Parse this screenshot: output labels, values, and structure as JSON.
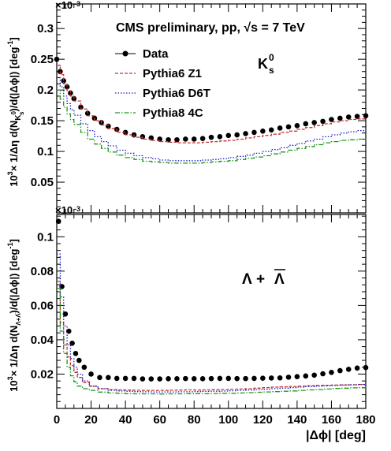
{
  "chart_data": [
    {
      "type": "line",
      "panel": "top",
      "title": "CMS preliminary, pp, √s = 7 TeV",
      "particle_label": "K_s^0",
      "particle_label_main": "K",
      "particle_label_sup": "0",
      "particle_label_sub": "s",
      "xlabel": "|Δϕ| [deg]",
      "ylabel": "10³× 1/Δη d(N_Ks0)/d(|Δϕ|) [deg⁻¹]",
      "ylabel_parts": [
        "10",
        "3",
        "× 1/Δη d(N",
        "K",
        "0",
        "s",
        ")/d(|Δϕ|) [deg",
        "-1",
        "]"
      ],
      "exponent_label": "×10",
      "exponent_power": "-3",
      "xlim": [
        0,
        180
      ],
      "ylim": [
        0,
        0.34
      ],
      "yticks": [
        0.05,
        0.1,
        0.15,
        0.2,
        0.25,
        0.3
      ],
      "ytick_labels": [
        "0.05",
        "0.1",
        "0.15",
        "0.2",
        "0.25",
        "0.3"
      ],
      "legend": {
        "placement": "top-left",
        "entries": [
          "Data",
          "Pythia6 Z1",
          "Pythia6 D6T",
          "Pythia8 4C"
        ]
      },
      "series": [
        {
          "name": "Data",
          "style": "markers",
          "color": "#000000",
          "x": [
            0,
            2,
            4,
            6,
            8,
            10,
            14,
            18,
            22,
            26,
            30,
            35,
            40,
            45,
            50,
            55,
            60,
            65,
            70,
            75,
            80,
            85,
            90,
            95,
            100,
            105,
            110,
            115,
            120,
            125,
            130,
            135,
            140,
            145,
            150,
            155,
            160,
            165,
            170,
            175,
            180
          ],
          "y": [
            0.25,
            0.23,
            0.215,
            0.205,
            0.195,
            0.186,
            0.172,
            0.162,
            0.154,
            0.147,
            0.141,
            0.136,
            0.131,
            0.127,
            0.124,
            0.122,
            0.12,
            0.119,
            0.119,
            0.12,
            0.12,
            0.121,
            0.123,
            0.124,
            0.126,
            0.127,
            0.129,
            0.131,
            0.133,
            0.135,
            0.138,
            0.14,
            0.142,
            0.145,
            0.147,
            0.149,
            0.152,
            0.154,
            0.156,
            0.157,
            0.158
          ]
        },
        {
          "name": "Pythia6 Z1",
          "style": "step",
          "color": "#c83232",
          "x": [
            0,
            2,
            4,
            6,
            8,
            10,
            14,
            18,
            22,
            26,
            30,
            35,
            40,
            45,
            50,
            55,
            60,
            65,
            70,
            75,
            80,
            85,
            90,
            95,
            100,
            105,
            110,
            115,
            120,
            125,
            130,
            135,
            140,
            145,
            150,
            155,
            160,
            165,
            170,
            175,
            180
          ],
          "y": [
            0.24,
            0.225,
            0.21,
            0.199,
            0.19,
            0.182,
            0.169,
            0.158,
            0.15,
            0.143,
            0.137,
            0.131,
            0.127,
            0.123,
            0.12,
            0.118,
            0.116,
            0.115,
            0.114,
            0.114,
            0.114,
            0.115,
            0.116,
            0.117,
            0.118,
            0.12,
            0.122,
            0.124,
            0.126,
            0.128,
            0.131,
            0.133,
            0.136,
            0.139,
            0.142,
            0.145,
            0.148,
            0.15,
            0.152,
            0.153,
            0.154
          ]
        },
        {
          "name": "Pythia6 D6T",
          "style": "step",
          "color": "#1e1ec8",
          "x": [
            0,
            2,
            4,
            6,
            8,
            10,
            14,
            18,
            22,
            26,
            30,
            35,
            40,
            45,
            50,
            55,
            60,
            65,
            70,
            75,
            80,
            85,
            90,
            95,
            100,
            105,
            110,
            115,
            120,
            125,
            130,
            135,
            140,
            145,
            150,
            155,
            160,
            165,
            170,
            175,
            180
          ],
          "y": [
            0.22,
            0.205,
            0.19,
            0.178,
            0.168,
            0.159,
            0.145,
            0.134,
            0.124,
            0.116,
            0.109,
            0.102,
            0.097,
            0.093,
            0.09,
            0.088,
            0.086,
            0.085,
            0.085,
            0.085,
            0.085,
            0.086,
            0.087,
            0.088,
            0.09,
            0.092,
            0.094,
            0.097,
            0.1,
            0.103,
            0.106,
            0.11,
            0.113,
            0.117,
            0.12,
            0.124,
            0.127,
            0.13,
            0.132,
            0.134,
            0.135
          ]
        },
        {
          "name": "Pythia8 4C",
          "style": "step",
          "color": "#1e961e",
          "x": [
            0,
            2,
            4,
            6,
            8,
            10,
            14,
            18,
            22,
            26,
            30,
            35,
            40,
            45,
            50,
            55,
            60,
            65,
            70,
            75,
            80,
            85,
            90,
            95,
            100,
            105,
            110,
            115,
            120,
            125,
            130,
            135,
            140,
            145,
            150,
            155,
            160,
            165,
            170,
            175,
            180
          ],
          "y": [
            0.2,
            0.185,
            0.172,
            0.161,
            0.152,
            0.144,
            0.131,
            0.12,
            0.112,
            0.105,
            0.099,
            0.094,
            0.09,
            0.087,
            0.084,
            0.083,
            0.082,
            0.081,
            0.081,
            0.081,
            0.081,
            0.082,
            0.083,
            0.084,
            0.085,
            0.087,
            0.089,
            0.091,
            0.093,
            0.096,
            0.099,
            0.102,
            0.105,
            0.108,
            0.111,
            0.114,
            0.116,
            0.118,
            0.119,
            0.12,
            0.121
          ]
        }
      ]
    },
    {
      "type": "line",
      "panel": "bottom",
      "particle_label": "Λ + Λ̅",
      "particle_label_left": "Λ + ",
      "particle_label_right": "Λ",
      "xlabel": "|Δϕ| [deg]",
      "ylabel": "10³× 1/Δη d(N_Λ+Λ̅)/d(|Δϕ|) [deg⁻¹]",
      "ylabel_parts": [
        "10",
        "3",
        "× 1/Δη d(N",
        "Λ+Λ̅",
        ")/d(|Δϕ|) [deg",
        "-1",
        "]"
      ],
      "exponent_label": "×10",
      "exponent_power": "-3",
      "xlim": [
        0,
        180
      ],
      "ylim": [
        0,
        0.113
      ],
      "yticks": [
        0.02,
        0.04,
        0.06,
        0.08,
        0.1
      ],
      "ytick_labels": [
        "0.02",
        "0.04",
        "0.06",
        "0.08",
        "0.1"
      ],
      "xticks": [
        0,
        20,
        40,
        60,
        80,
        100,
        120,
        140,
        160,
        180
      ],
      "xtick_labels": [
        "0",
        "20",
        "40",
        "60",
        "80",
        "100",
        "120",
        "140",
        "160",
        "180"
      ],
      "series": [
        {
          "name": "Data",
          "style": "markers",
          "color": "#000000",
          "x": [
            1,
            3,
            5,
            7,
            9,
            11,
            13,
            16,
            20,
            25,
            30,
            35,
            40,
            45,
            50,
            55,
            60,
            65,
            70,
            75,
            80,
            85,
            90,
            95,
            100,
            105,
            110,
            115,
            120,
            125,
            130,
            135,
            140,
            145,
            150,
            155,
            160,
            165,
            170,
            175,
            180
          ],
          "y": [
            0.109,
            0.071,
            0.055,
            0.045,
            0.038,
            0.032,
            0.028,
            0.024,
            0.02,
            0.018,
            0.018,
            0.0175,
            0.0175,
            0.0175,
            0.0172,
            0.0172,
            0.0172,
            0.0173,
            0.0173,
            0.0174,
            0.0173,
            0.0173,
            0.0174,
            0.0175,
            0.0175,
            0.0174,
            0.0174,
            0.0175,
            0.0176,
            0.0177,
            0.0178,
            0.0182,
            0.0185,
            0.0189,
            0.0194,
            0.0202,
            0.021,
            0.022,
            0.0228,
            0.0235,
            0.0238
          ]
        },
        {
          "name": "Pythia6 Z1",
          "style": "step",
          "color": "#c83232",
          "x": [
            0,
            2,
            4,
            6,
            8,
            10,
            12,
            15,
            19,
            24,
            30,
            35,
            40,
            45,
            50,
            55,
            60,
            65,
            70,
            75,
            80,
            85,
            90,
            95,
            100,
            105,
            110,
            115,
            120,
            125,
            130,
            135,
            140,
            145,
            150,
            155,
            160,
            165,
            170,
            175,
            180
          ],
          "y": [
            0.074,
            0.05,
            0.037,
            0.03,
            0.025,
            0.021,
            0.018,
            0.015,
            0.013,
            0.0115,
            0.011,
            0.0108,
            0.0107,
            0.0106,
            0.0105,
            0.0105,
            0.0105,
            0.0106,
            0.0107,
            0.0108,
            0.0107,
            0.0108,
            0.0109,
            0.011,
            0.0112,
            0.0113,
            0.0115,
            0.0118,
            0.0121,
            0.0124,
            0.0126,
            0.0128,
            0.013,
            0.0132,
            0.0134,
            0.0135,
            0.0136,
            0.0137,
            0.0138,
            0.0139,
            0.014
          ]
        },
        {
          "name": "Pythia6 D6T",
          "style": "step",
          "color": "#1e1ec8",
          "x": [
            0,
            2,
            4,
            6,
            8,
            10,
            12,
            15,
            19,
            24,
            30,
            35,
            40,
            45,
            50,
            55,
            60,
            65,
            70,
            75,
            80,
            85,
            90,
            95,
            100,
            105,
            110,
            115,
            120,
            125,
            130,
            135,
            140,
            145,
            150,
            155,
            160,
            165,
            170,
            175,
            180
          ],
          "y": [
            0.09,
            0.065,
            0.048,
            0.037,
            0.029,
            0.024,
            0.02,
            0.016,
            0.013,
            0.0115,
            0.0105,
            0.0102,
            0.01,
            0.0098,
            0.0097,
            0.0096,
            0.0096,
            0.0096,
            0.0097,
            0.0097,
            0.0098,
            0.0099,
            0.01,
            0.0101,
            0.0103,
            0.0105,
            0.0107,
            0.011,
            0.0112,
            0.0115,
            0.0118,
            0.0121,
            0.0124,
            0.0127,
            0.013,
            0.0132,
            0.0134,
            0.0136,
            0.0138,
            0.0139,
            0.014
          ]
        },
        {
          "name": "Pythia8 4C",
          "style": "step",
          "color": "#1e961e",
          "x": [
            0,
            2,
            4,
            6,
            8,
            10,
            12,
            15,
            19,
            24,
            30,
            35,
            40,
            45,
            50,
            55,
            60,
            65,
            70,
            75,
            80,
            85,
            90,
            95,
            100,
            105,
            110,
            115,
            120,
            125,
            130,
            135,
            140,
            145,
            150,
            155,
            160,
            165,
            170,
            175,
            180
          ],
          "y": [
            0.07,
            0.045,
            0.032,
            0.024,
            0.019,
            0.0155,
            0.013,
            0.0115,
            0.0105,
            0.0095,
            0.009,
            0.0088,
            0.0086,
            0.0085,
            0.0085,
            0.0085,
            0.0084,
            0.0085,
            0.0085,
            0.0086,
            0.0086,
            0.0086,
            0.0087,
            0.0088,
            0.0088,
            0.009,
            0.0092,
            0.0094,
            0.0096,
            0.0098,
            0.01,
            0.0102,
            0.0105,
            0.0108,
            0.011,
            0.0113,
            0.0116,
            0.0118,
            0.012,
            0.0121,
            0.0122
          ]
        }
      ]
    }
  ]
}
